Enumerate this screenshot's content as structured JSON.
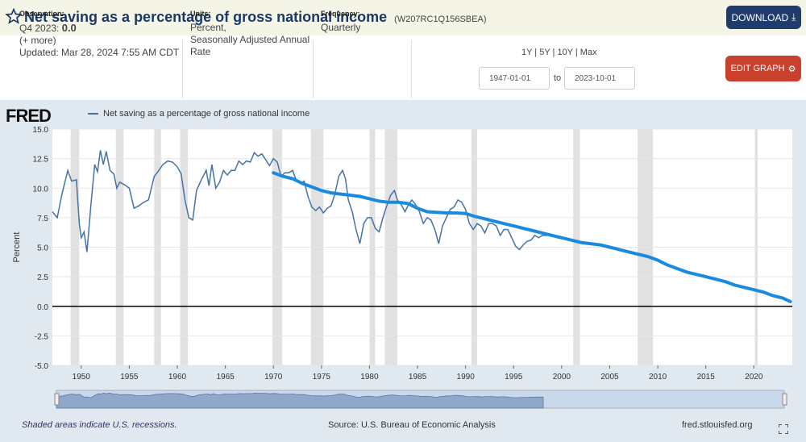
{
  "header": {
    "title": "Net saving as a percentage of gross national income",
    "series_id": "(W207RC1Q156SBEA)",
    "download_label": "DOWNLOAD"
  },
  "meta": {
    "observation_label": "Observation:",
    "observation_period": "Q4 2023:",
    "observation_value": "0.0",
    "more": "(+ more)",
    "updated": "Updated: Mar 28, 2024 7:55 AM CDT",
    "units_label": "Units:",
    "units_line1": "Percent,",
    "units_line2": "Seasonally Adjusted Annual",
    "units_line3": "Rate",
    "frequency_label": "Frequency:",
    "frequency": "Quarterly",
    "range_links": "1Y | 5Y | 10Y | Max",
    "start_date": "1947-01-01",
    "to_label": "to",
    "end_date": "2023-10-01",
    "edit_label": "EDIT GRAPH"
  },
  "graph": {
    "logo": "FRED",
    "legend": "Net saving as a percentage of gross national income",
    "footer_left": "Shaded areas indicate U.S. recessions.",
    "footer_source": "Source: U.S. Bureau of Economic Analysis",
    "footer_right": "fred.stlouisfed.org"
  },
  "colors": {
    "series": "#4572a7",
    "trend": "#1a8ae0",
    "recession": "#e1e1e1",
    "download_btn": "#1f3c6d",
    "edit_btn": "#c9402d"
  },
  "chart_data": {
    "type": "line",
    "ylabel": "Percent",
    "ylim": [
      -5.0,
      15.0
    ],
    "yticks": [
      "15.0",
      "12.5",
      "10.0",
      "7.5",
      "5.0",
      "2.5",
      "0.0",
      "-2.5",
      "-5.0"
    ],
    "xlim": [
      1947,
      2024
    ],
    "xticks": [
      "1950",
      "1955",
      "1960",
      "1965",
      "1970",
      "1975",
      "1980",
      "1985",
      "1990",
      "1995",
      "2000",
      "2005",
      "2010",
      "2015",
      "2020"
    ],
    "recessions": [
      [
        1948.9,
        1949.8
      ],
      [
        1953.6,
        1954.4
      ],
      [
        1957.6,
        1958.3
      ],
      [
        1960.3,
        1961.1
      ],
      [
        1969.9,
        1970.9
      ],
      [
        1973.9,
        1975.2
      ],
      [
        1980.0,
        1980.6
      ],
      [
        1981.6,
        1982.9
      ],
      [
        1990.6,
        1991.2
      ],
      [
        2001.2,
        2001.9
      ],
      [
        2007.9,
        2009.5
      ],
      [
        2020.1,
        2020.4
      ]
    ],
    "series": [
      {
        "name": "Net saving as a percentage of gross national income",
        "points": [
          [
            1947,
            8.0
          ],
          [
            1947.5,
            7.5
          ],
          [
            1948,
            9.5
          ],
          [
            1948.6,
            11.5
          ],
          [
            1949,
            10.6
          ],
          [
            1949.5,
            10.7
          ],
          [
            1949.8,
            7.0
          ],
          [
            1950,
            5.8
          ],
          [
            1950.3,
            6.3
          ],
          [
            1950.6,
            4.6
          ],
          [
            1951,
            8.5
          ],
          [
            1951.4,
            12.0
          ],
          [
            1951.7,
            11.4
          ],
          [
            1952,
            13.2
          ],
          [
            1952.3,
            12.0
          ],
          [
            1952.6,
            13.1
          ],
          [
            1953,
            11.5
          ],
          [
            1953.4,
            11.2
          ],
          [
            1953.7,
            10.0
          ],
          [
            1954,
            10.5
          ],
          [
            1954.5,
            10.3
          ],
          [
            1955,
            10.0
          ],
          [
            1955.5,
            8.3
          ],
          [
            1956,
            8.5
          ],
          [
            1956.5,
            8.8
          ],
          [
            1957,
            9.0
          ],
          [
            1957.6,
            11.0
          ],
          [
            1958,
            11.4
          ],
          [
            1958.5,
            12.0
          ],
          [
            1959,
            12.3
          ],
          [
            1959.5,
            12.2
          ],
          [
            1960,
            11.8
          ],
          [
            1960.4,
            11.2
          ],
          [
            1960.8,
            9.0
          ],
          [
            1961.2,
            7.5
          ],
          [
            1961.6,
            7.3
          ],
          [
            1962,
            9.8
          ],
          [
            1962.5,
            10.7
          ],
          [
            1963,
            11.5
          ],
          [
            1963.3,
            10.2
          ],
          [
            1963.6,
            12.0
          ],
          [
            1964,
            10.0
          ],
          [
            1964.4,
            10.5
          ],
          [
            1964.8,
            11.5
          ],
          [
            1965.2,
            11.1
          ],
          [
            1965.6,
            11.5
          ],
          [
            1966,
            11.5
          ],
          [
            1966.4,
            12.3
          ],
          [
            1966.8,
            12.0
          ],
          [
            1967.2,
            12.3
          ],
          [
            1967.6,
            12.2
          ],
          [
            1968,
            13.0
          ],
          [
            1968.4,
            12.7
          ],
          [
            1968.8,
            12.9
          ],
          [
            1969.2,
            12.4
          ],
          [
            1969.6,
            11.9
          ],
          [
            1970,
            12.5
          ],
          [
            1970.4,
            12.2
          ],
          [
            1970.8,
            11.0
          ],
          [
            1971.2,
            11.3
          ],
          [
            1971.6,
            11.3
          ],
          [
            1972,
            11.5
          ],
          [
            1972.4,
            10.6
          ],
          [
            1972.8,
            10.4
          ],
          [
            1973.2,
            10.6
          ],
          [
            1973.6,
            9.3
          ],
          [
            1974,
            8.4
          ],
          [
            1974.4,
            8.1
          ],
          [
            1974.8,
            8.4
          ],
          [
            1975.2,
            7.9
          ],
          [
            1975.6,
            8.3
          ],
          [
            1976,
            8.5
          ],
          [
            1976.4,
            9.5
          ],
          [
            1976.8,
            11.0
          ],
          [
            1977.2,
            11.5
          ],
          [
            1977.5,
            10.8
          ],
          [
            1977.8,
            9.0
          ],
          [
            1978.2,
            8.0
          ],
          [
            1978.6,
            6.5
          ],
          [
            1979,
            5.3
          ],
          [
            1979.4,
            7.0
          ],
          [
            1979.8,
            7.5
          ],
          [
            1980.2,
            7.5
          ],
          [
            1980.6,
            6.6
          ],
          [
            1981,
            6.3
          ],
          [
            1981.4,
            7.5
          ],
          [
            1981.8,
            8.5
          ],
          [
            1982.2,
            9.4
          ],
          [
            1982.6,
            9.8
          ],
          [
            1982.9,
            9.0
          ],
          [
            1983.3,
            8.6
          ],
          [
            1983.7,
            8.0
          ],
          [
            1984,
            8.5
          ],
          [
            1984.4,
            9.0
          ],
          [
            1984.8,
            8.6
          ],
          [
            1985.2,
            8.0
          ],
          [
            1985.6,
            7.0
          ],
          [
            1986,
            7.5
          ],
          [
            1986.4,
            7.3
          ],
          [
            1986.8,
            6.5
          ],
          [
            1987.2,
            5.3
          ],
          [
            1987.6,
            6.8
          ],
          [
            1988,
            7.5
          ],
          [
            1988.4,
            8.2
          ],
          [
            1988.8,
            8.4
          ],
          [
            1989.2,
            9.0
          ],
          [
            1989.6,
            8.8
          ],
          [
            1990,
            8.2
          ],
          [
            1990.4,
            7.0
          ],
          [
            1990.8,
            6.5
          ],
          [
            1991.2,
            7.0
          ],
          [
            1991.6,
            6.8
          ],
          [
            1992,
            6.2
          ],
          [
            1992.4,
            7.0
          ],
          [
            1992.8,
            7.0
          ],
          [
            1993.2,
            6.8
          ],
          [
            1993.6,
            6.0
          ],
          [
            1994,
            6.5
          ],
          [
            1994.4,
            6.5
          ],
          [
            1994.8,
            5.8
          ],
          [
            1995.2,
            5.1
          ],
          [
            1995.6,
            4.8
          ],
          [
            1996,
            5.2
          ],
          [
            1996.4,
            5.5
          ],
          [
            1996.8,
            5.6
          ],
          [
            1997.2,
            6.0
          ],
          [
            1997.6,
            5.8
          ],
          [
            1998,
            6.0
          ],
          [
            1998.5,
            6.0
          ]
        ]
      }
    ],
    "trend": [
      [
        1970,
        11.3
      ],
      [
        1971,
        11.0
      ],
      [
        1972,
        10.8
      ],
      [
        1973,
        10.4
      ],
      [
        1974,
        10.1
      ],
      [
        1975,
        9.8
      ],
      [
        1976,
        9.6
      ],
      [
        1977,
        9.5
      ],
      [
        1978,
        9.4
      ],
      [
        1979,
        9.3
      ],
      [
        1980,
        9.1
      ],
      [
        1981,
        8.9
      ],
      [
        1982,
        8.8
      ],
      [
        1983,
        8.8
      ],
      [
        1984,
        8.7
      ],
      [
        1985,
        8.3
      ],
      [
        1986,
        8.0
      ],
      [
        1987,
        7.95
      ],
      [
        1988,
        7.9
      ],
      [
        1989,
        7.9
      ],
      [
        1990,
        7.85
      ],
      [
        1991,
        7.6
      ],
      [
        1992,
        7.4
      ],
      [
        1993,
        7.2
      ],
      [
        1994,
        7.0
      ],
      [
        1995,
        6.8
      ],
      [
        1996,
        6.6
      ],
      [
        1997,
        6.4
      ],
      [
        1998,
        6.2
      ],
      [
        1999,
        6.0
      ],
      [
        2000,
        5.8
      ],
      [
        2001,
        5.6
      ],
      [
        2002,
        5.4
      ],
      [
        2003,
        5.3
      ],
      [
        2004,
        5.2
      ],
      [
        2005,
        5.0
      ],
      [
        2006,
        4.8
      ],
      [
        2007,
        4.6
      ],
      [
        2008,
        4.4
      ],
      [
        2009,
        4.2
      ],
      [
        2010,
        3.9
      ],
      [
        2011,
        3.5
      ],
      [
        2012,
        3.2
      ],
      [
        2013,
        2.9
      ],
      [
        2014,
        2.7
      ],
      [
        2015,
        2.5
      ],
      [
        2016,
        2.3
      ],
      [
        2017,
        2.1
      ],
      [
        2018,
        1.8
      ],
      [
        2019,
        1.6
      ],
      [
        2020,
        1.4
      ],
      [
        2021,
        1.2
      ],
      [
        2022,
        0.9
      ],
      [
        2023,
        0.7
      ],
      [
        2023.8,
        0.4
      ]
    ]
  }
}
